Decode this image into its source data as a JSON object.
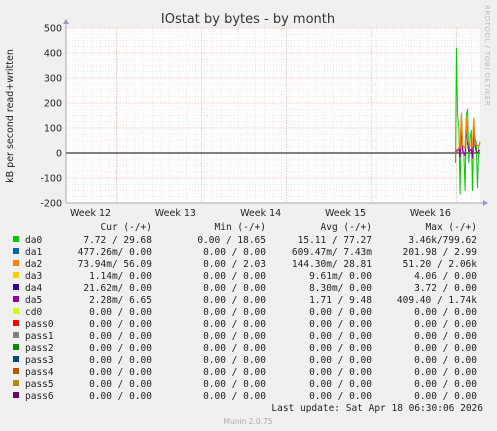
{
  "chart_data": {
    "type": "line",
    "title": "IOstat by bytes - by month",
    "ylabel": "kB per second read+written",
    "ylim": [
      -200,
      500
    ],
    "yticks": [
      -200,
      -100,
      0,
      100,
      200,
      300,
      400,
      500
    ],
    "ytick_labels": [
      "-200",
      "-100",
      "0",
      "100",
      "200",
      "300",
      "400",
      "500"
    ],
    "xticks": [
      {
        "label": "Week 12",
        "pos": 0.122
      },
      {
        "label": "Week 13",
        "pos": 0.327
      },
      {
        "label": "Week 14",
        "pos": 0.533
      },
      {
        "label": "Week 15",
        "pos": 0.738
      },
      {
        "label": "Week 16",
        "pos": 0.943
      }
    ],
    "grid": true,
    "side_text": "RRDTOOL / TOBI OETIKER",
    "columns": [
      "Cur (-/+)",
      "Min (-/+)",
      "Avg (-/+)",
      "Max (-/+)"
    ],
    "legend": [
      {
        "name": "da0",
        "color": "#00cc00",
        "cur": "7.72 / 29.68",
        "min": "0.00 / 18.65",
        "avg": "15.11 / 77.27",
        "max": "3.46k/799.62"
      },
      {
        "name": "da1",
        "color": "#0066b3",
        "cur": "477.26m/  0.00",
        "min": "0.00 /  0.00",
        "avg": "609.47m/  7.43m",
        "max": "201.98 /  2.99"
      },
      {
        "name": "da2",
        "color": "#ff8000",
        "cur": "73.94m/ 56.09",
        "min": "0.00 /  2.03",
        "avg": "144.30m/ 28.81",
        "max": "51.20 /  2.06k"
      },
      {
        "name": "da3",
        "color": "#ffcc00",
        "cur": "1.14m/  0.00",
        "min": "0.00 /  0.00",
        "avg": "9.61m/  0.00",
        "max": "4.06 /  0.00"
      },
      {
        "name": "da4",
        "color": "#330099",
        "cur": "21.62m/  0.00",
        "min": "0.00 /  0.00",
        "avg": "8.30m/  0.00",
        "max": "3.72 /  0.00"
      },
      {
        "name": "da5",
        "color": "#990099",
        "cur": "2.28m/  6.65",
        "min": "0.00 /  0.00",
        "avg": "1.71 /  9.48",
        "max": "409.40 /  1.74k"
      },
      {
        "name": "cd0",
        "color": "#ccff00",
        "cur": "0.00 /  0.00",
        "min": "0.00 /  0.00",
        "avg": "0.00 /  0.00",
        "max": "0.00 /  0.00"
      },
      {
        "name": "pass0",
        "color": "#ff0000",
        "cur": "0.00 /  0.00",
        "min": "0.00 /  0.00",
        "avg": "0.00 /  0.00",
        "max": "0.00 /  0.00"
      },
      {
        "name": "pass1",
        "color": "#808080",
        "cur": "0.00 /  0.00",
        "min": "0.00 /  0.00",
        "avg": "0.00 /  0.00",
        "max": "0.00 /  0.00"
      },
      {
        "name": "pass2",
        "color": "#008f00",
        "cur": "0.00 /  0.00",
        "min": "0.00 /  0.00",
        "avg": "0.00 /  0.00",
        "max": "0.00 /  0.00"
      },
      {
        "name": "pass3",
        "color": "#00487d",
        "cur": "0.00 /  0.00",
        "min": "0.00 /  0.00",
        "avg": "0.00 /  0.00",
        "max": "0.00 /  0.00"
      },
      {
        "name": "pass4",
        "color": "#b35a00",
        "cur": "0.00 /  0.00",
        "min": "0.00 /  0.00",
        "avg": "0.00 /  0.00",
        "max": "0.00 /  0.00"
      },
      {
        "name": "pass5",
        "color": "#b38f00",
        "cur": "0.00 /  0.00",
        "min": "0.00 /  0.00",
        "avg": "0.00 /  0.00",
        "max": "0.00 /  0.00"
      },
      {
        "name": "pass6",
        "color": "#6b006b",
        "cur": "0.00 /  0.00",
        "min": "0.00 /  0.00",
        "avg": "0.00 /  0.00",
        "max": "0.00 /  0.00"
      }
    ],
    "series": [
      {
        "name": "da0",
        "color": "#00cc00",
        "width": 1,
        "x": [
          0.941,
          0.943,
          0.946,
          0.949,
          0.952,
          0.955,
          0.958,
          0.961,
          0.964,
          0.967,
          0.97,
          0.973,
          0.976,
          0.979,
          0.982,
          0.985,
          0.988,
          0.991,
          0.994,
          0.997,
          1.0
        ],
        "y": [
          -40,
          420,
          150,
          100,
          -165,
          140,
          20,
          -10,
          -150,
          150,
          175,
          -40,
          60,
          90,
          -150,
          80,
          60,
          40,
          -140,
          30,
          45
        ]
      },
      {
        "name": "da5",
        "color": "#990099",
        "width": 1.2,
        "x": [
          0.941,
          0.946,
          0.949,
          0.952,
          0.955,
          0.958,
          0.961,
          0.964,
          0.967,
          0.97,
          0.973,
          0.976,
          0.979,
          0.982,
          0.985,
          0.988,
          0.991,
          0.994,
          0.997,
          1.0
        ],
        "y": [
          5,
          10,
          20,
          -15,
          130,
          10,
          0,
          -10,
          120,
          40,
          5,
          10,
          15,
          -20,
          110,
          30,
          5,
          0,
          10,
          8
        ]
      },
      {
        "name": "da2",
        "color": "#ff8000",
        "width": 1.2,
        "x": [
          0.941,
          0.946,
          0.952,
          0.955,
          0.958,
          0.964,
          0.967,
          0.97,
          0.976,
          0.982,
          0.985,
          0.988,
          0.994,
          0.997,
          1.0
        ],
        "y": [
          10,
          15,
          20,
          160,
          30,
          20,
          140,
          50,
          30,
          25,
          140,
          40,
          30,
          25,
          45
        ]
      }
    ],
    "last_update": "Last update: Sat Apr 18 06:30:06 2026",
    "footer": "Munin 2.0.75"
  }
}
